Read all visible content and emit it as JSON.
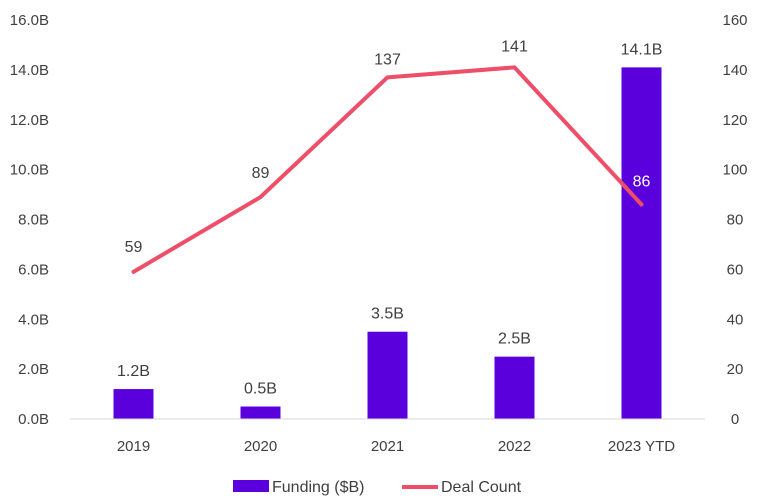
{
  "chart_data": {
    "type": "bar+line",
    "categories": [
      "2019",
      "2020",
      "2021",
      "2022",
      "2023 YTD"
    ],
    "series": [
      {
        "name": "Funding ($B)",
        "type": "bar",
        "axis": "left",
        "values": [
          1.2,
          0.5,
          3.5,
          2.5,
          14.1
        ],
        "labels": [
          "1.2B",
          "0.5B",
          "3.5B",
          "2.5B",
          "14.1B"
        ],
        "color": "#5A00DC"
      },
      {
        "name": "Deal Count",
        "type": "line",
        "axis": "right",
        "values": [
          59,
          89,
          137,
          141,
          86
        ],
        "labels": [
          "59",
          "89",
          "137",
          "141",
          "86"
        ],
        "color": "#EF4E69"
      }
    ],
    "y_left": {
      "min": 0,
      "max": 16,
      "ticks": [
        "0.0B",
        "2.0B",
        "4.0B",
        "6.0B",
        "8.0B",
        "10.0B",
        "12.0B",
        "14.0B",
        "16.0B"
      ]
    },
    "y_right": {
      "min": 0,
      "max": 160,
      "ticks": [
        "0",
        "20",
        "40",
        "60",
        "80",
        "100",
        "120",
        "140",
        "160"
      ]
    },
    "legend": {
      "position": "bottom",
      "items": [
        "Funding ($B)",
        "Deal Count"
      ]
    },
    "colors": {
      "bar": "#5A00DC",
      "line": "#EF4E69",
      "text": "#404040",
      "axis": "#D9D9D9"
    }
  }
}
